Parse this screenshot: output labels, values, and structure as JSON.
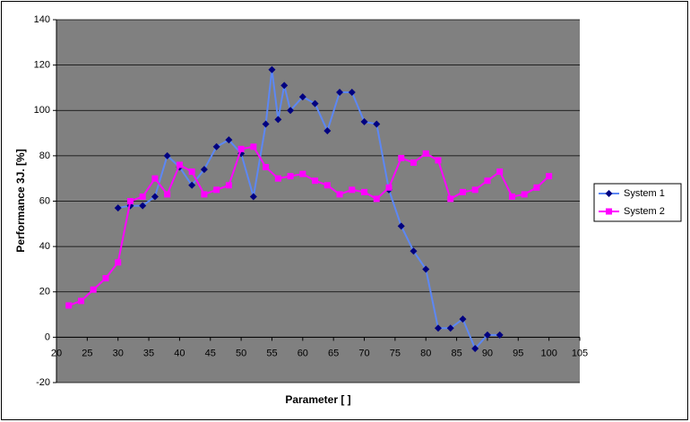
{
  "chart_data": {
    "type": "line",
    "x_label": "Parameter [ ]",
    "y_label": "Performance 3J. [%]",
    "xlim": [
      20,
      105
    ],
    "xticks": [
      20,
      25,
      30,
      35,
      40,
      45,
      50,
      55,
      60,
      65,
      70,
      75,
      80,
      85,
      90,
      95,
      100,
      105
    ],
    "ylim": [
      -20,
      140
    ],
    "yticks": [
      -20,
      0,
      20,
      40,
      60,
      80,
      100,
      120,
      140
    ],
    "grid": true,
    "plot_background": "#808080",
    "legend": "right",
    "series": [
      {
        "name": "System 1",
        "color": "#5c87f5",
        "marker_color": "#000080",
        "marker": "diamond",
        "x": [
          30,
          32,
          34,
          36,
          38,
          40,
          42,
          44,
          46,
          48,
          50,
          52,
          54,
          55,
          56,
          57,
          58,
          60,
          62,
          64,
          66,
          68,
          70,
          72,
          74,
          76,
          78,
          80,
          82,
          84,
          86,
          88,
          90,
          92
        ],
        "values": [
          57,
          58,
          58,
          62,
          80,
          75,
          67,
          74,
          84,
          87,
          81,
          62,
          94,
          118,
          96,
          111,
          100,
          106,
          103,
          91,
          108,
          108,
          95,
          94,
          65,
          49,
          38,
          30,
          4,
          4,
          8,
          -5,
          1,
          1
        ]
      },
      {
        "name": "System 2",
        "color": "#ff00ff",
        "marker_color": "#ff00ff",
        "marker": "square",
        "x": [
          22,
          24,
          26,
          28,
          30,
          32,
          34,
          36,
          38,
          40,
          42,
          44,
          46,
          48,
          50,
          52,
          54,
          56,
          58,
          60,
          62,
          64,
          66,
          68,
          70,
          72,
          74,
          76,
          78,
          80,
          82,
          84,
          86,
          88,
          90,
          92,
          94,
          96,
          98,
          100
        ],
        "values": [
          14,
          16,
          21,
          26,
          33,
          60,
          62,
          70,
          63,
          76,
          73,
          63,
          65,
          67,
          83,
          84,
          75,
          70,
          71,
          72,
          69,
          67,
          63,
          65,
          64,
          61,
          66,
          79,
          77,
          81,
          78,
          61,
          64,
          65,
          69,
          73,
          62,
          63,
          66,
          71
        ]
      }
    ]
  }
}
